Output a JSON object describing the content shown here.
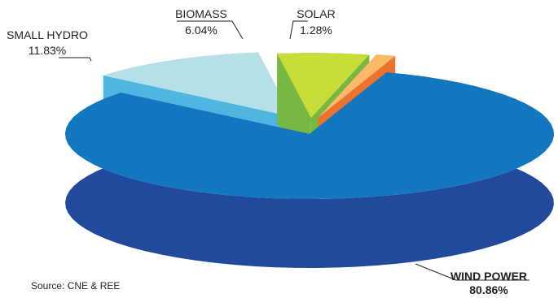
{
  "chart_data": {
    "type": "pie",
    "style": "3d-exploded",
    "slices": [
      {
        "name": "WIND POWER",
        "value": 80.86,
        "label_value": "80.86%",
        "top_color": "#1377bf",
        "side_color": "#214a9c",
        "emphasis": true
      },
      {
        "name": "SMALL HYDRO",
        "value": 11.83,
        "label_value": "11.83%",
        "top_color": "#b4e0e8",
        "side_color": "#4fb5e1",
        "emphasis": false
      },
      {
        "name": "BIOMASS",
        "value": 6.04,
        "label_value": "6.04%",
        "top_color": "#c8dc3a",
        "side_color": "#76b843",
        "emphasis": false
      },
      {
        "name": "SOLAR",
        "value": 1.28,
        "label_value": "1.28%",
        "top_color": "#fbb96a",
        "side_color": "#ec7230",
        "emphasis": false
      }
    ]
  },
  "source": "Source: CNE & REE"
}
